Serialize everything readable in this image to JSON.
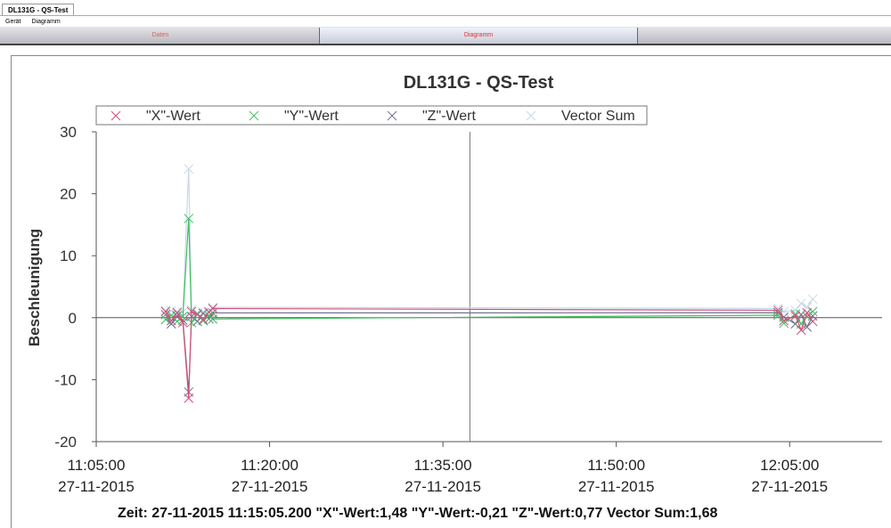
{
  "window": {
    "doc_tab": "DL131G - QS-Test"
  },
  "menu": {
    "items": [
      "Gerät",
      "Diagramm"
    ]
  },
  "tabs": [
    {
      "label": "Daten",
      "active": false
    },
    {
      "label": "Diagramm",
      "active": true
    }
  ],
  "status": "Zeit: 27-11-2015 11:15:05.200 \"X\"-Wert:1,48 \"Y\"-Wert:-0,21 \"Z\"-Wert:0,77 Vector Sum:1,68",
  "chart_data": {
    "type": "line",
    "title": "DL131G - QS-Test",
    "ylabel": "Beschleunigung",
    "xlabel": "",
    "ylim": [
      -20,
      30
    ],
    "xlim": [
      "11:05:00",
      "12:13:00"
    ],
    "yticks": [
      30,
      20,
      10,
      0,
      -10,
      -20
    ],
    "xticks": [
      {
        "time": "11:05:00",
        "date": "27-11-2015"
      },
      {
        "time": "11:20:00",
        "date": "27-11-2015"
      },
      {
        "time": "11:35:00",
        "date": "27-11-2015"
      },
      {
        "time": "11:50:00",
        "date": "27-11-2015"
      },
      {
        "time": "12:05:00",
        "date": "27-11-2015"
      }
    ],
    "cursor_time": "11:37:20",
    "legend": "top",
    "series": [
      {
        "name": "\"X\"-Wert",
        "color": "#d0507a",
        "points": [
          [
            "11:11:00",
            1.0
          ],
          [
            "11:11:30",
            -0.5
          ],
          [
            "11:12:00",
            0.8
          ],
          [
            "11:12:30",
            -0.8
          ],
          [
            "11:13:00",
            -13
          ],
          [
            "11:13:15",
            1.0
          ],
          [
            "11:13:45",
            0.5
          ],
          [
            "11:14:15",
            -0.3
          ],
          [
            "11:14:45",
            0.9
          ],
          [
            "11:15:05",
            1.48
          ],
          [
            "12:04:00",
            1.2
          ],
          [
            "12:04:30",
            -0.5
          ],
          [
            "12:05:30",
            0.3
          ],
          [
            "12:06:00",
            -2
          ],
          [
            "12:06:30",
            0.8
          ],
          [
            "12:07:00",
            -0.6
          ]
        ]
      },
      {
        "name": "\"Y\"-Wert",
        "color": "#40c060",
        "points": [
          [
            "11:11:00",
            -0.3
          ],
          [
            "11:11:30",
            0.4
          ],
          [
            "11:12:00",
            -0.6
          ],
          [
            "11:12:30",
            0.2
          ],
          [
            "11:13:00",
            16
          ],
          [
            "11:13:15",
            -0.8
          ],
          [
            "11:13:45",
            0.6
          ],
          [
            "11:14:15",
            -0.5
          ],
          [
            "11:14:45",
            0.3
          ],
          [
            "11:15:05",
            -0.21
          ],
          [
            "12:04:00",
            0.4
          ],
          [
            "12:04:30",
            -0.9
          ],
          [
            "12:05:30",
            0.6
          ],
          [
            "12:06:00",
            -1
          ],
          [
            "12:06:30",
            0.2
          ],
          [
            "12:07:00",
            1
          ]
        ]
      },
      {
        "name": "\"Z\"-Wert",
        "color": "#707090",
        "points": [
          [
            "11:11:00",
            0.5
          ],
          [
            "11:11:30",
            -1
          ],
          [
            "11:12:00",
            0.3
          ],
          [
            "11:12:30",
            -0.4
          ],
          [
            "11:13:00",
            -12
          ],
          [
            "11:13:15",
            0.2
          ],
          [
            "11:13:45",
            -0.6
          ],
          [
            "11:14:15",
            0.7
          ],
          [
            "11:14:45",
            -0.2
          ],
          [
            "11:15:05",
            0.77
          ],
          [
            "12:04:00",
            0.8
          ],
          [
            "12:04:30",
            0.1
          ],
          [
            "12:05:30",
            -1
          ],
          [
            "12:06:00",
            0.5
          ],
          [
            "12:06:30",
            -1.5
          ],
          [
            "12:07:00",
            0.3
          ]
        ]
      },
      {
        "name": "Vector Sum",
        "color": "#c8d8e8",
        "points": [
          [
            "11:11:00",
            1.2
          ],
          [
            "11:11:30",
            1.1
          ],
          [
            "11:12:00",
            1.0
          ],
          [
            "11:12:30",
            0.9
          ],
          [
            "11:13:00",
            24
          ],
          [
            "11:13:15",
            1.3
          ],
          [
            "11:13:45",
            0.8
          ],
          [
            "11:14:15",
            0.9
          ],
          [
            "11:14:45",
            1.0
          ],
          [
            "11:15:05",
            1.68
          ],
          [
            "12:04:00",
            1.5
          ],
          [
            "12:04:30",
            1.0
          ],
          [
            "12:05:30",
            1.2
          ],
          [
            "12:06:00",
            2.3
          ],
          [
            "12:06:30",
            1.7
          ],
          [
            "12:07:00",
            3
          ]
        ]
      }
    ]
  }
}
